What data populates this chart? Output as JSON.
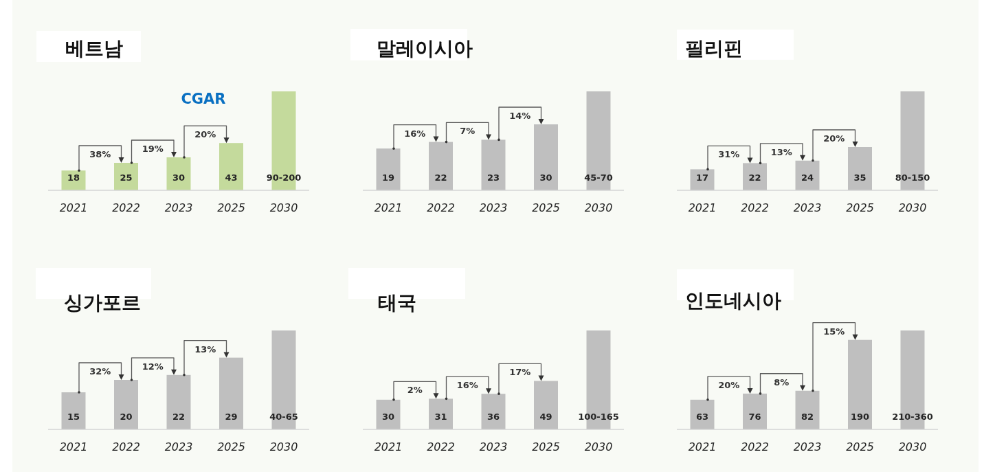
{
  "chart_data": [
    {
      "type": "bar",
      "title": "베트남",
      "subtitle": "CGAR",
      "categories": [
        "2021",
        "2022",
        "2023",
        "2025",
        "2030"
      ],
      "values": [
        18,
        25,
        30,
        43,
        90
      ],
      "value_labels": [
        "18",
        "25",
        "30",
        "43",
        "90-200"
      ],
      "color": "#c4da9c",
      "annotations": [
        "38%",
        "19%",
        "20%"
      ]
    },
    {
      "type": "bar",
      "title": "말레이시아",
      "categories": [
        "2021",
        "2022",
        "2023",
        "2025",
        "2030"
      ],
      "values": [
        19,
        22,
        23,
        30,
        45
      ],
      "value_labels": [
        "19",
        "22",
        "23",
        "30",
        "45-70"
      ],
      "color": "#bfbfbf",
      "annotations": [
        "16%",
        "7%",
        "14%"
      ]
    },
    {
      "type": "bar",
      "title": "필리핀",
      "categories": [
        "2021",
        "2022",
        "2023",
        "2025",
        "2030"
      ],
      "values": [
        17,
        22,
        24,
        35,
        80
      ],
      "value_labels": [
        "17",
        "22",
        "24",
        "35",
        "80-150"
      ],
      "color": "#bfbfbf",
      "annotations": [
        "31%",
        "13%",
        "20%"
      ]
    },
    {
      "type": "bar",
      "title": "싱가포르",
      "categories": [
        "2021",
        "2022",
        "2023",
        "2025",
        "2030"
      ],
      "values": [
        15,
        20,
        22,
        29,
        40
      ],
      "value_labels": [
        "15",
        "20",
        "22",
        "29",
        "40-65"
      ],
      "color": "#bfbfbf",
      "annotations": [
        "32%",
        "12%",
        "13%"
      ]
    },
    {
      "type": "bar",
      "title": "태국",
      "categories": [
        "2021",
        "2022",
        "2023",
        "2025",
        "2030"
      ],
      "values": [
        30,
        31,
        36,
        49,
        100
      ],
      "value_labels": [
        "30",
        "31",
        "36",
        "49",
        "100-165"
      ],
      "color": "#bfbfbf",
      "annotations": [
        "2%",
        "16%",
        "17%"
      ]
    },
    {
      "type": "bar",
      "title": "인도네시아",
      "categories": [
        "2021",
        "2022",
        "2023",
        "2025",
        "2030"
      ],
      "values": [
        63,
        76,
        82,
        190,
        210
      ],
      "value_labels": [
        "63",
        "76",
        "82",
        "190",
        "210-360"
      ],
      "color": "#bfbfbf",
      "annotations": [
        "20%",
        "8%",
        "15%"
      ]
    }
  ]
}
